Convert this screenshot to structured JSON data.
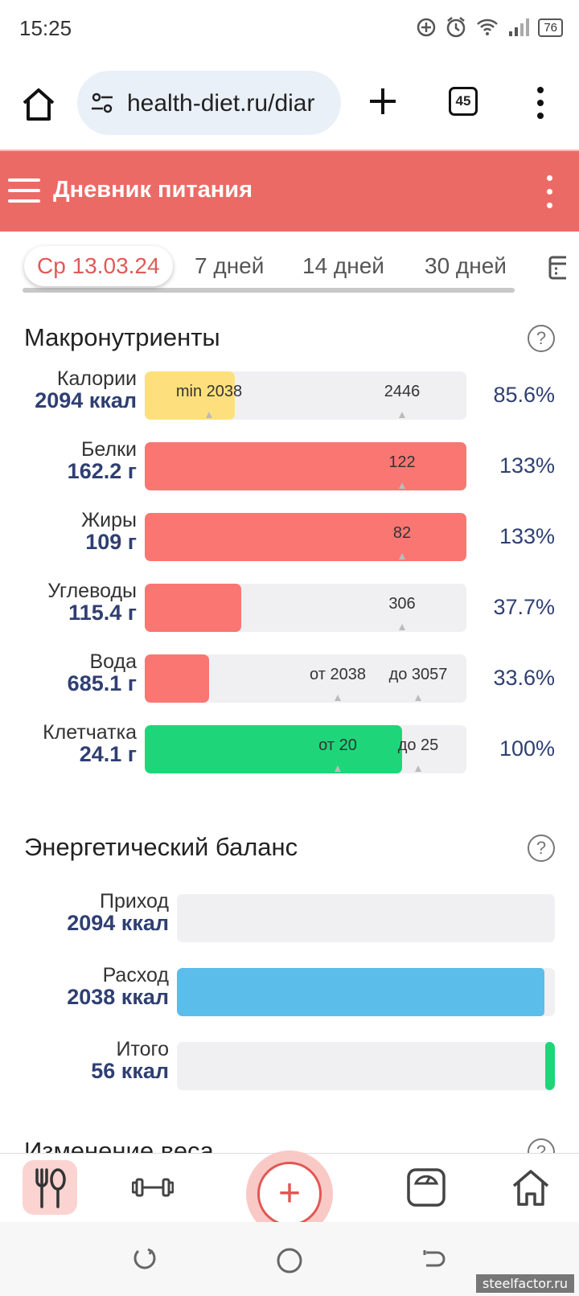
{
  "status": {
    "time": "15:25",
    "battery": "76"
  },
  "browser": {
    "url": "health-diet.ru/diar",
    "tab_count": "45"
  },
  "header": {
    "title": "Дневник питания"
  },
  "date_tabs": [
    {
      "label": "Ср 13.03.24",
      "active": true
    },
    {
      "label": "7 дней",
      "active": false
    },
    {
      "label": "14 дней",
      "active": false
    },
    {
      "label": "30 дней",
      "active": false
    }
  ],
  "macros": {
    "title": "Макронутриенты",
    "help": "?",
    "items": [
      {
        "name": "Калории",
        "value": "2094 ккал",
        "percent": "85.6%",
        "fill": 0.28,
        "color": "#fde07d",
        "marks": [
          "min 2038",
          "2446"
        ]
      },
      {
        "name": "Белки",
        "value": "162.2 г",
        "percent": "133%",
        "fill": 1.0,
        "color": "#fa7673",
        "marks": [
          "122"
        ]
      },
      {
        "name": "Жиры",
        "value": "109 г",
        "percent": "133%",
        "fill": 1.0,
        "color": "#fa7673",
        "marks": [
          "82"
        ]
      },
      {
        "name": "Углеводы",
        "value": "115.4 г",
        "percent": "37.7%",
        "fill": 0.3,
        "color": "#fa7673",
        "marks": [
          "306"
        ]
      },
      {
        "name": "Вода",
        "value": "685.1 г",
        "percent": "33.6%",
        "fill": 0.2,
        "color": "#fa7673",
        "marks": [
          "от 2038",
          "до 3057"
        ]
      },
      {
        "name": "Клетчатка",
        "value": "24.1 г",
        "percent": "100%",
        "fill": 0.8,
        "color": "#1ed679",
        "marks": [
          "от 20",
          "до 25"
        ]
      }
    ]
  },
  "energy": {
    "title": "Энергетический баланс",
    "help": "?",
    "items": [
      {
        "name": "Приход",
        "value": "2094 ккал",
        "fill": 0.0,
        "color": "#5bbde9"
      },
      {
        "name": "Расход",
        "value": "2038 ккал",
        "fill": 0.973,
        "color": "#5bbde9"
      },
      {
        "name": "Итого",
        "value": "56 ккал",
        "fill": 0.027,
        "color": "#1ed679"
      }
    ]
  },
  "weight": {
    "title": "Изменение веса",
    "help": "?"
  },
  "bottom_nav": {
    "items": [
      {
        "icon": "food-icon",
        "active": true
      },
      {
        "icon": "dumbbell-icon",
        "active": false
      },
      {
        "icon": "add-icon",
        "active": false
      },
      {
        "icon": "scale-icon",
        "active": false
      },
      {
        "icon": "home-icon",
        "active": false
      }
    ],
    "add_symbol": "+"
  },
  "watermark": "steelfactor.ru"
}
